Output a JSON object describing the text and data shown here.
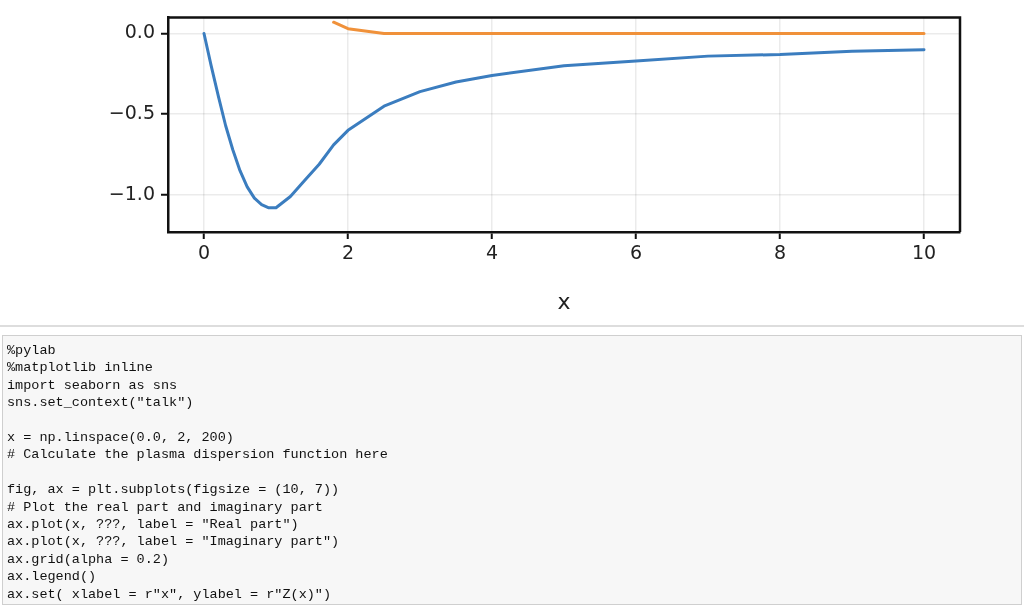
{
  "chart_data": {
    "type": "line",
    "xlabel": "x",
    "x": [
      0,
      0.1,
      0.2,
      0.3,
      0.4,
      0.5,
      0.6,
      0.7,
      0.8,
      0.9,
      1,
      1.2,
      1.4,
      1.6,
      1.8,
      2,
      2.5,
      3,
      3.5,
      4,
      5,
      6,
      7,
      8,
      9,
      10
    ],
    "series": [
      {
        "color": "#3b7dbf",
        "values": [
          0,
          -0.2,
          -0.39,
          -0.57,
          -0.72,
          -0.85,
          -0.95,
          -1.02,
          -1.06,
          -1.08,
          -1.08,
          -1.01,
          -0.91,
          -0.81,
          -0.69,
          -0.6,
          -0.45,
          -0.36,
          -0.3,
          -0.26,
          -0.2,
          -0.17,
          -0.14,
          -0.13,
          -0.11,
          -0.1
        ]
      },
      {
        "color": "#f0913a",
        "values": [
          null,
          null,
          null,
          null,
          null,
          null,
          null,
          null,
          null,
          null,
          null,
          null,
          null,
          null,
          0.07,
          0.03,
          0,
          0,
          0,
          0,
          0,
          0,
          0,
          0,
          0,
          0
        ]
      }
    ],
    "xlim": [
      -0.5,
      10.5
    ],
    "ylim": [
      -1.23,
      0.1
    ],
    "xticks": [
      0,
      2,
      4,
      6,
      8,
      10
    ],
    "yticks": [
      {
        "value": -1,
        "label": "−1.0"
      },
      {
        "value": -0.5,
        "label": "−0.5"
      },
      {
        "value": 0,
        "label": "0.0"
      }
    ],
    "grid": true,
    "legend": false,
    "marker": "none",
    "line_style": "solid",
    "annotations": [
      "%pylab\n%matplotlib inline\nimport seaborn as sns\nsns.set_context(\"talk\")",
      "x = np.linspace(0.0, 2, 200)\n# Calculate the plasma dispersion function here",
      "fig, ax = plt.subplots(figsize = (10, 7))\n# Plot the real part and imaginary part\nax.plot(x, ???, label = \"Real part\")\nax.plot(x, ???, label = \"Imaginary part\")\nax.grid(alpha = 0.2)\nax.legend()\nax.set( xlabel = r\"x\", ylabel = r\"Z(x)\")"
    ]
  }
}
